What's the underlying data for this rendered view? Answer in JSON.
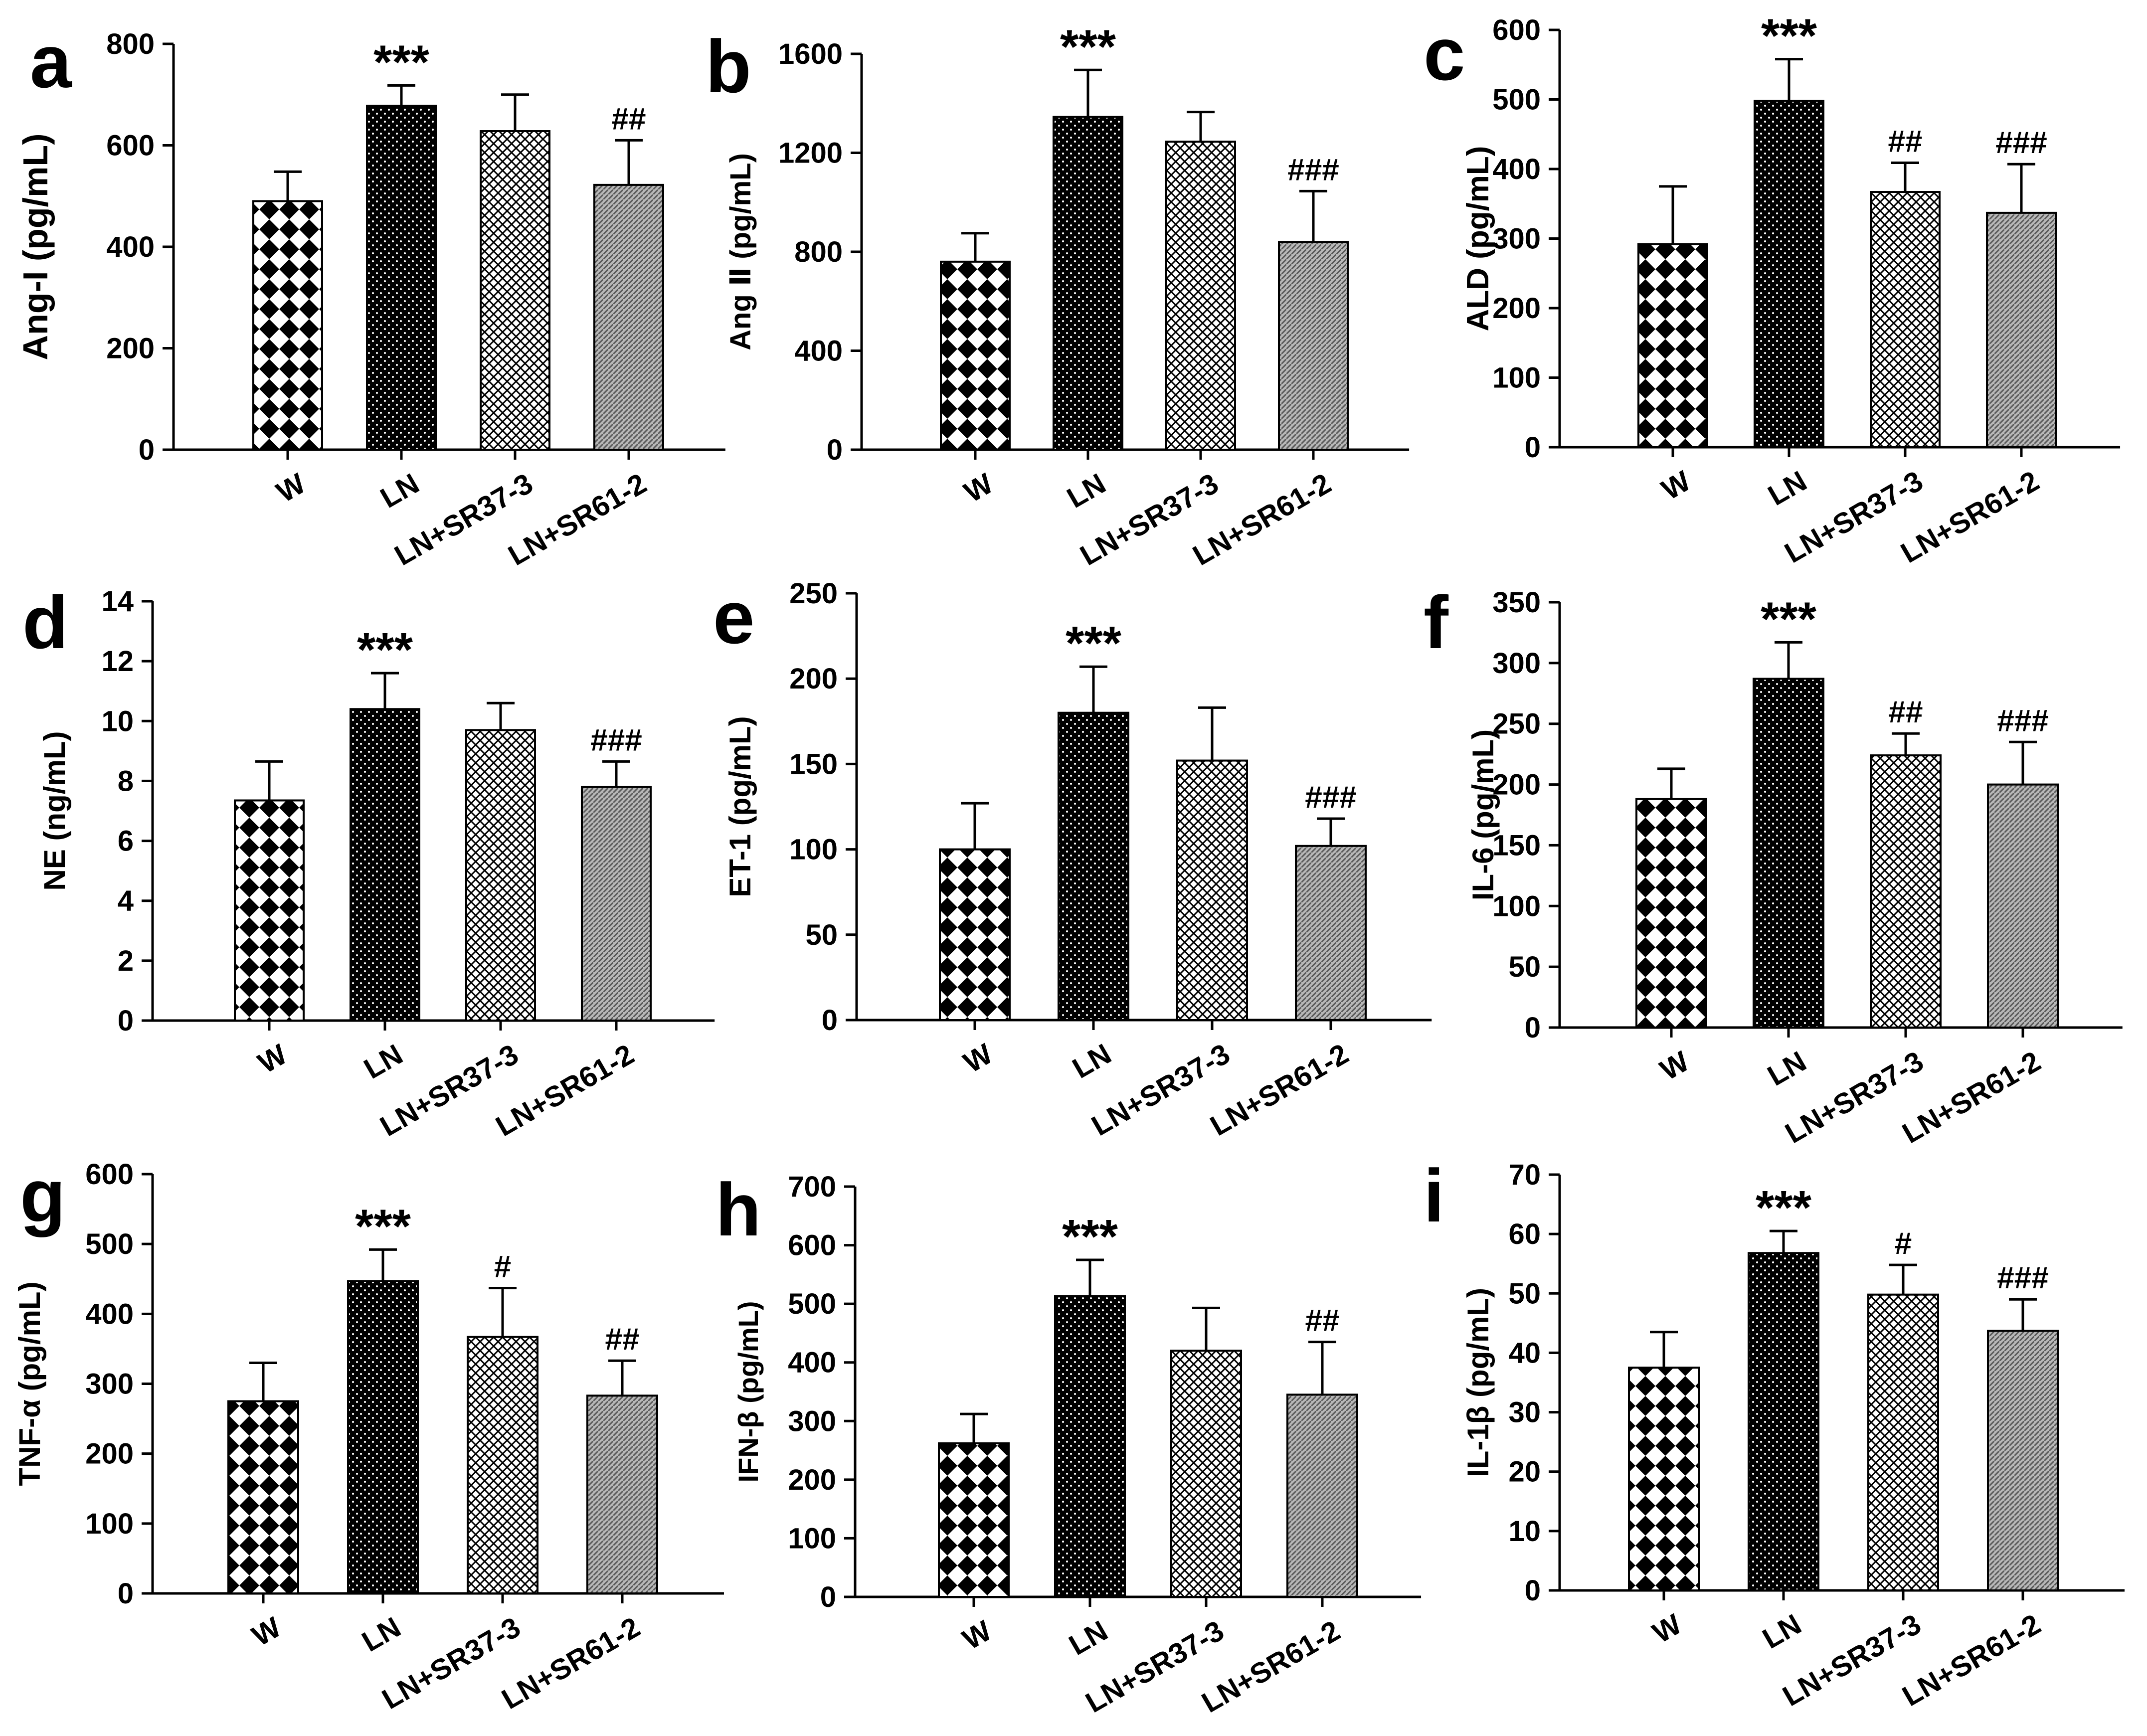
{
  "categories": [
    "W",
    "LN",
    "LN+SR37-3",
    "LN+SR61-2"
  ],
  "chart_data": [
    {
      "type": "bar",
      "letter": "a",
      "ylabel": "Ang-I (pg/mL)",
      "ylim": [
        0,
        800
      ],
      "ticks": [
        0,
        200,
        400,
        600,
        800
      ],
      "values": [
        490,
        678,
        628,
        522
      ],
      "errors": [
        58,
        40,
        72,
        88
      ],
      "annotations": [
        "",
        "***",
        "",
        "##"
      ]
    },
    {
      "type": "bar",
      "letter": "b",
      "ylabel": "Ang Ⅱ (pg/mL)",
      "ylim": [
        0,
        1600
      ],
      "ticks": [
        0,
        400,
        800,
        1200,
        1600
      ],
      "values": [
        760,
        1345,
        1245,
        840
      ],
      "errors": [
        115,
        190,
        120,
        205
      ],
      "annotations": [
        "",
        "***",
        "",
        "###"
      ]
    },
    {
      "type": "bar",
      "letter": "c",
      "ylabel": "ALD (pg/mL)",
      "ylim": [
        0,
        600
      ],
      "ticks": [
        0,
        100,
        200,
        300,
        400,
        500,
        600
      ],
      "values": [
        292,
        498,
        367,
        337
      ],
      "errors": [
        83,
        60,
        42,
        70
      ],
      "annotations": [
        "",
        "***",
        "##",
        "###"
      ]
    },
    {
      "type": "bar",
      "letter": "d",
      "ylabel": "NE (ng/mL)",
      "ylim": [
        0,
        14
      ],
      "ticks": [
        0,
        2,
        4,
        6,
        8,
        10,
        12,
        14
      ],
      "values": [
        7.35,
        10.4,
        9.7,
        7.8
      ],
      "errors": [
        1.3,
        1.2,
        0.9,
        0.85
      ],
      "annotations": [
        "",
        "***",
        "",
        "###"
      ]
    },
    {
      "type": "bar",
      "letter": "e",
      "ylabel": "ET-1 (pg/mL)",
      "ylim": [
        0,
        250
      ],
      "ticks": [
        0,
        50,
        100,
        150,
        200,
        250
      ],
      "values": [
        100,
        180,
        152,
        102
      ],
      "errors": [
        27,
        27,
        31,
        16
      ],
      "annotations": [
        "",
        "***",
        "",
        "###"
      ]
    },
    {
      "type": "bar",
      "letter": "f",
      "ylabel": "IL-6 (pg/mL)",
      "ylim": [
        0,
        350
      ],
      "ticks": [
        0,
        50,
        100,
        150,
        200,
        250,
        300,
        350
      ],
      "values": [
        188,
        287,
        224,
        200
      ],
      "errors": [
        25,
        30,
        18,
        35
      ],
      "annotations": [
        "",
        "***",
        "##",
        "###"
      ]
    },
    {
      "type": "bar",
      "letter": "g",
      "ylabel": "TNF-α (pg/mL)",
      "ylim": [
        0,
        600
      ],
      "ticks": [
        0,
        100,
        200,
        300,
        400,
        500,
        600
      ],
      "values": [
        275,
        447,
        367,
        283
      ],
      "errors": [
        55,
        45,
        70,
        50
      ],
      "annotations": [
        "",
        "***",
        "#",
        "##"
      ]
    },
    {
      "type": "bar",
      "letter": "h",
      "ylabel": "IFN-β (pg/mL)",
      "ylim": [
        0,
        700
      ],
      "ticks": [
        0,
        100,
        200,
        300,
        400,
        500,
        600,
        700
      ],
      "values": [
        262,
        513,
        420,
        345
      ],
      "errors": [
        50,
        62,
        73,
        90
      ],
      "annotations": [
        "",
        "***",
        "",
        "##"
      ]
    },
    {
      "type": "bar",
      "letter": "i",
      "ylabel": "IL-1β (pg/mL)",
      "ylim": [
        0,
        70
      ],
      "ticks": [
        0,
        10,
        20,
        30,
        40,
        50,
        60,
        70
      ],
      "values": [
        37.5,
        56.8,
        49.8,
        43.7
      ],
      "errors": [
        6,
        3.7,
        5,
        5.3
      ],
      "annotations": [
        "",
        "***",
        "#",
        "###"
      ]
    }
  ]
}
